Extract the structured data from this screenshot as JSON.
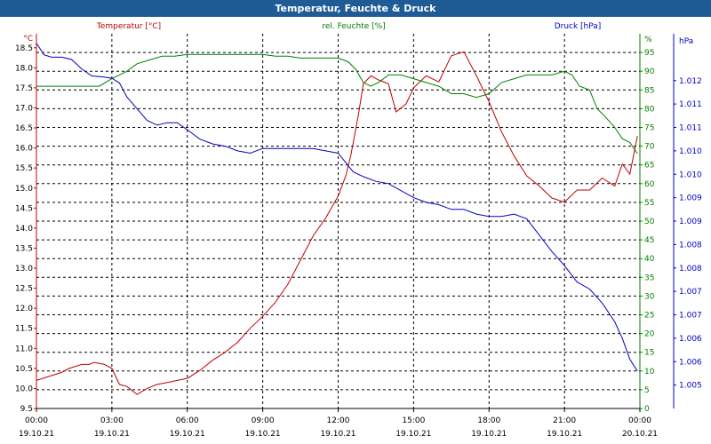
{
  "window": {
    "title": "Temperatur, Feuchte & Druck"
  },
  "colors": {
    "title_bar": "#1f5c96",
    "temperature": "#c00000",
    "humidity": "#008000",
    "pressure": "#0000c0",
    "grid": "#000000",
    "axis_text": "#000000"
  },
  "chart_data": {
    "type": "line",
    "title": "Temperatur, Feuchte & Druck",
    "grid": true,
    "x_ticks": [
      {
        "time": "00:00",
        "date": "19.10.21",
        "hour": 0
      },
      {
        "time": "03:00",
        "date": "19.10.21",
        "hour": 3
      },
      {
        "time": "06:00",
        "date": "19.10.21",
        "hour": 6
      },
      {
        "time": "09:00",
        "date": "19.10.21",
        "hour": 9
      },
      {
        "time": "12:00",
        "date": "19.10.21",
        "hour": 12
      },
      {
        "time": "15:00",
        "date": "19.10.21",
        "hour": 15
      },
      {
        "time": "18:00",
        "date": "19.10.21",
        "hour": 18
      },
      {
        "time": "21:00",
        "date": "19.10.21",
        "hour": 21
      },
      {
        "time": "00:00",
        "date": "20.10.21",
        "hour": 24
      }
    ],
    "xlim": [
      0,
      24
    ],
    "axes": {
      "temperature": {
        "label": "Temperatur [°C]",
        "unit": "°C",
        "ylim": [
          9.5,
          18.85
        ],
        "ticks": [
          "9.5",
          "10.0",
          "10.5",
          "11.0",
          "11.5",
          "12.0",
          "12.5",
          "13.0",
          "13.5",
          "14.0",
          "14.5",
          "15.0",
          "15.5",
          "16.0",
          "16.5",
          "17.0",
          "17.5",
          "18.0",
          "18.5"
        ],
        "tick_values": [
          9.5,
          10.0,
          10.5,
          11.0,
          11.5,
          12.0,
          12.5,
          13.0,
          13.5,
          14.0,
          14.5,
          15.0,
          15.5,
          16.0,
          16.5,
          17.0,
          17.5,
          18.0,
          18.5
        ]
      },
      "humidity": {
        "label": "rel. Feuchte [%]",
        "unit": "%",
        "ylim": [
          0,
          100
        ],
        "ticks": [
          "0",
          "5",
          "10",
          "15",
          "20",
          "25",
          "30",
          "35",
          "40",
          "45",
          "50",
          "55",
          "60",
          "65",
          "70",
          "75",
          "80",
          "85",
          "90",
          "95"
        ],
        "tick_values": [
          0,
          5,
          10,
          15,
          20,
          25,
          30,
          35,
          40,
          45,
          50,
          55,
          60,
          65,
          70,
          75,
          80,
          85,
          90,
          95
        ]
      },
      "pressure": {
        "label": "Druck [hPa]",
        "unit": "hPa",
        "ylim": [
          1004.5,
          1012.5
        ],
        "ticks": [
          "1.005",
          "1.006",
          "1.006",
          "1.007",
          "1.007",
          "1.008",
          "1.008",
          "1.009",
          "1.009",
          "1.010",
          "1.010",
          "1.011",
          "1.011",
          "1.012"
        ],
        "tick_values": [
          1005.0,
          1005.5,
          1006.0,
          1006.5,
          1007.0,
          1007.5,
          1008.0,
          1008.5,
          1009.0,
          1009.5,
          1010.0,
          1010.5,
          1011.0,
          1011.5
        ]
      }
    },
    "series": [
      {
        "name": "Temperatur [°C]",
        "axis": "temperature",
        "x": [
          0,
          0.5,
          1,
          1.3,
          1.8,
          2.1,
          2.3,
          2.7,
          3,
          3.3,
          3.6,
          4,
          4.4,
          4.8,
          5.2,
          5.6,
          6,
          6.5,
          7,
          7.5,
          8,
          8.5,
          9,
          9.5,
          10,
          10.5,
          11,
          11.5,
          12,
          12.3,
          12.5,
          12.8,
          13,
          13.3,
          13.6,
          14,
          14.3,
          14.7,
          15,
          15.5,
          16,
          16.5,
          17,
          17.5,
          18,
          18.5,
          19,
          19.5,
          20,
          20.5,
          21,
          21.5,
          22,
          22.5,
          23,
          23.3,
          23.6,
          23.9
        ],
        "values": [
          10.2,
          10.3,
          10.4,
          10.5,
          10.6,
          10.6,
          10.65,
          10.6,
          10.5,
          10.1,
          10.05,
          9.85,
          10.0,
          10.1,
          10.15,
          10.2,
          10.25,
          10.45,
          10.7,
          10.9,
          11.15,
          11.5,
          11.8,
          12.15,
          12.6,
          13.2,
          13.8,
          14.25,
          14.8,
          15.3,
          15.8,
          16.8,
          17.6,
          17.8,
          17.7,
          17.6,
          16.9,
          17.1,
          17.5,
          17.8,
          17.65,
          18.3,
          18.4,
          17.8,
          17.15,
          16.4,
          15.8,
          15.3,
          15.05,
          14.75,
          14.65,
          14.95,
          14.95,
          15.25,
          15.05,
          15.6,
          15.35,
          16.3
        ]
      },
      {
        "name": "rel. Feuchte [%]",
        "axis": "humidity",
        "x": [
          0,
          0.5,
          1,
          1.5,
          2,
          2.5,
          3,
          3.3,
          3.6,
          4,
          4.5,
          5,
          5.5,
          6,
          7,
          8,
          9,
          9.5,
          10,
          10.5,
          11,
          11.5,
          12,
          12.4,
          12.7,
          13,
          13.3,
          13.6,
          14,
          14.5,
          15,
          15.5,
          16,
          16.5,
          17,
          17.5,
          18,
          18.5,
          19,
          19.5,
          20,
          20.5,
          21,
          21.3,
          21.6,
          22,
          22.3,
          22.6,
          23,
          23.3,
          23.6,
          23.9
        ],
        "values": [
          86,
          86,
          86,
          86,
          86,
          86,
          88,
          89,
          90,
          92,
          93,
          94,
          94,
          94.5,
          94.5,
          94.5,
          94.5,
          94,
          94,
          93.5,
          93.5,
          93.5,
          93.5,
          92.5,
          90.5,
          87,
          86,
          87,
          89,
          89,
          88,
          87,
          86,
          84,
          84,
          83,
          84,
          87,
          88,
          89,
          89,
          89,
          90,
          89,
          86,
          85,
          80,
          78,
          75,
          72,
          71,
          68
        ]
      },
      {
        "name": "Druck [hPa]",
        "axis": "pressure",
        "x": [
          0,
          0.3,
          0.6,
          1,
          1.4,
          1.8,
          2.2,
          2.6,
          3,
          3.3,
          3.6,
          4,
          4.4,
          4.8,
          5.2,
          5.6,
          6,
          6.5,
          7,
          7.5,
          8,
          8.5,
          9,
          9.5,
          10,
          10.5,
          11,
          11.5,
          12,
          12.3,
          12.6,
          13,
          13.5,
          14,
          14.5,
          15,
          15.5,
          16,
          16.5,
          17,
          17.5,
          18,
          18.5,
          19,
          19.5,
          20,
          20.5,
          21,
          21.5,
          22,
          22.5,
          23,
          23.3,
          23.6,
          23.9
        ],
        "values": [
          1012.3,
          1012.05,
          1012.0,
          1012.0,
          1011.95,
          1011.75,
          1011.6,
          1011.58,
          1011.55,
          1011.45,
          1011.15,
          1010.9,
          1010.65,
          1010.55,
          1010.6,
          1010.6,
          1010.45,
          1010.25,
          1010.15,
          1010.1,
          1010.0,
          1009.95,
          1010.05,
          1010.05,
          1010.05,
          1010.05,
          1010.05,
          1010.0,
          1009.95,
          1009.75,
          1009.55,
          1009.45,
          1009.35,
          1009.3,
          1009.15,
          1009.0,
          1008.9,
          1008.85,
          1008.75,
          1008.75,
          1008.65,
          1008.6,
          1008.6,
          1008.65,
          1008.55,
          1008.2,
          1007.85,
          1007.55,
          1007.2,
          1007.05,
          1006.75,
          1006.35,
          1006.0,
          1005.55,
          1005.3
        ]
      }
    ]
  }
}
